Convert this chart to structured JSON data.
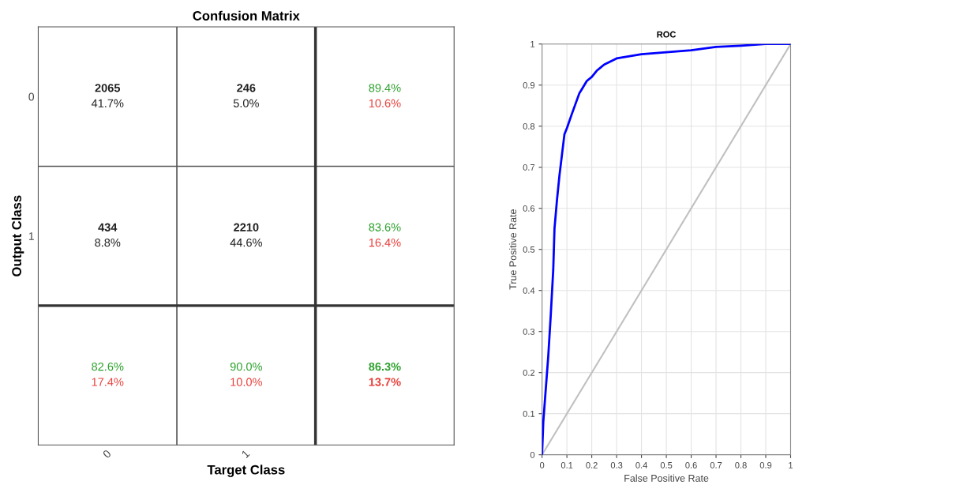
{
  "chart_data": [
    {
      "type": "other",
      "title": "Confusion Matrix",
      "xlabel": "Target Class",
      "ylabel": "Output Class",
      "categories": [
        "0",
        "1",
        null
      ],
      "y_categories": [
        "0",
        "1",
        null
      ],
      "annotations": [
        "2065\n41.7%",
        "246\n5.0%",
        "89.4%\n10.6%",
        "434\n8.8%",
        "2210\n44.6%",
        "83.6%\n16.4%",
        "82.6%\n17.4%",
        "90.0%\n10.0%",
        "86.3%\n13.7%"
      ]
    },
    {
      "type": "line",
      "title": "ROC",
      "xlabel": "False Positive Rate",
      "ylabel": "True Positive Rate",
      "xlim": [
        0,
        1
      ],
      "ylim": [
        0,
        1
      ],
      "xticks": [
        0,
        0.1,
        0.2,
        0.3,
        0.4,
        0.5,
        0.6,
        0.7,
        0.8,
        0.9,
        1
      ],
      "yticks": [
        0,
        0.1,
        0.2,
        0.3,
        0.4,
        0.5,
        0.6,
        0.7,
        0.8,
        0.9,
        1
      ],
      "grid": true,
      "marker": "none",
      "line_style": "solid",
      "series": [
        {
          "color": "#0000ff",
          "x": [
            0,
            0.005,
            0.015,
            0.025,
            0.035,
            0.045,
            0.05,
            0.06,
            0.07,
            0.08,
            0.09,
            0.1,
            0.12,
            0.15,
            0.16,
            0.18,
            0.2,
            0.22,
            0.25,
            0.3,
            0.4,
            0.5,
            0.6,
            0.7,
            0.8,
            0.9,
            1
          ],
          "values": [
            0,
            0.08,
            0.16,
            0.24,
            0.34,
            0.45,
            0.55,
            0.62,
            0.68,
            0.73,
            0.78,
            0.795,
            0.83,
            0.88,
            0.89,
            0.91,
            0.92,
            0.935,
            0.95,
            0.965,
            0.975,
            0.98,
            0.985,
            0.993,
            0.996,
            1.0,
            1.0
          ]
        },
        {
          "color": "#c0c0c0",
          "x": [
            0,
            1
          ],
          "values": [
            0,
            1
          ]
        }
      ]
    }
  ]
}
